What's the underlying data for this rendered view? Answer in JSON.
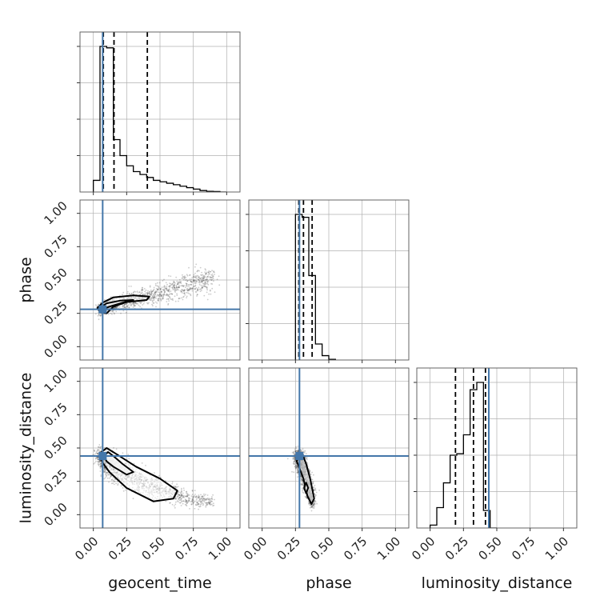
{
  "chart_data": {
    "type": "corner",
    "parameters": [
      "geocent_time",
      "phase",
      "luminosity_distance"
    ],
    "xlabels": [
      "geocent_time",
      "phase",
      "luminosity_distance"
    ],
    "ylabels": [
      "",
      "phase",
      "luminosity_distance"
    ],
    "axis_range": [
      -0.1,
      1.1
    ],
    "tick_values": [
      0.0,
      0.25,
      0.5,
      0.75,
      1.0
    ],
    "tick_labels": [
      "0.00",
      "0.25",
      "0.50",
      "0.75",
      "1.00"
    ],
    "grid": true,
    "truths": {
      "geocent_time": 0.07,
      "phase": 0.28,
      "luminosity_distance": 0.44
    },
    "quantiles": {
      "geocent_time": [
        0.075,
        0.155,
        0.405
      ],
      "phase": [
        0.275,
        0.31,
        0.375
      ],
      "luminosity_distance": [
        0.19,
        0.325,
        0.415
      ]
    },
    "histograms": {
      "geocent_time": {
        "bin_edges": [
          0.0,
          0.05,
          0.1,
          0.15,
          0.2,
          0.25,
          0.3,
          0.35,
          0.4,
          0.45,
          0.5,
          0.55,
          0.6,
          0.65,
          0.7,
          0.75,
          0.8,
          0.85,
          0.9,
          0.95,
          1.0
        ],
        "counts": [
          0.08,
          1.0,
          0.99,
          0.36,
          0.25,
          0.18,
          0.14,
          0.12,
          0.1,
          0.08,
          0.07,
          0.06,
          0.05,
          0.04,
          0.03,
          0.02,
          0.01,
          0.005,
          0.003,
          0.0
        ]
      },
      "phase": {
        "bin_edges": [
          0.25,
          0.3,
          0.35,
          0.4,
          0.45,
          0.5,
          0.55
        ],
        "counts": [
          1.0,
          0.98,
          0.58,
          0.11,
          0.03,
          0.005
        ]
      },
      "luminosity_distance": {
        "bin_edges": [
          0.0,
          0.05,
          0.1,
          0.15,
          0.2,
          0.25,
          0.3,
          0.35,
          0.4,
          0.45,
          0.5
        ],
        "counts": [
          0.02,
          0.14,
          0.31,
          0.5,
          0.51,
          0.64,
          0.95,
          1.0,
          0.12,
          0.0
        ]
      }
    },
    "scatter_regions": [
      {
        "x": "geocent_time",
        "y": "phase",
        "spine": [
          [
            0.05,
            0.28
          ],
          [
            0.15,
            0.31
          ],
          [
            0.3,
            0.35
          ],
          [
            0.45,
            0.39
          ],
          [
            0.6,
            0.43
          ],
          [
            0.75,
            0.47
          ],
          [
            0.9,
            0.52
          ]
        ],
        "spread": [
          0.02,
          0.025,
          0.03,
          0.035,
          0.04,
          0.045,
          0.05
        ]
      },
      {
        "x": "geocent_time",
        "y": "luminosity_distance",
        "spine": [
          [
            0.05,
            0.44
          ],
          [
            0.12,
            0.36
          ],
          [
            0.25,
            0.3
          ],
          [
            0.4,
            0.23
          ],
          [
            0.55,
            0.17
          ],
          [
            0.7,
            0.12
          ],
          [
            0.9,
            0.1
          ]
        ],
        "spread": [
          0.03,
          0.05,
          0.05,
          0.045,
          0.04,
          0.03,
          0.02
        ]
      },
      {
        "x": "phase",
        "y": "luminosity_distance",
        "spine": [
          [
            0.27,
            0.44
          ],
          [
            0.3,
            0.36
          ],
          [
            0.33,
            0.26
          ],
          [
            0.36,
            0.16
          ],
          [
            0.38,
            0.08
          ]
        ],
        "spread": [
          0.03,
          0.035,
          0.035,
          0.03,
          0.02
        ]
      }
    ],
    "contours": [
      {
        "x": "geocent_time",
        "y": "phase",
        "outer": [
          [
            0.03,
            0.29
          ],
          [
            0.07,
            0.33
          ],
          [
            0.15,
            0.37
          ],
          [
            0.3,
            0.385
          ],
          [
            0.42,
            0.375
          ],
          [
            0.4,
            0.35
          ],
          [
            0.25,
            0.335
          ],
          [
            0.15,
            0.3
          ],
          [
            0.1,
            0.25
          ],
          [
            0.05,
            0.26
          ],
          [
            0.03,
            0.29
          ]
        ],
        "inner": [
          [
            0.06,
            0.3
          ],
          [
            0.1,
            0.325
          ],
          [
            0.2,
            0.345
          ],
          [
            0.3,
            0.35
          ],
          [
            0.22,
            0.33
          ],
          [
            0.12,
            0.3
          ],
          [
            0.08,
            0.285
          ],
          [
            0.06,
            0.3
          ]
        ]
      },
      {
        "x": "geocent_time",
        "y": "luminosity_distance",
        "outer": [
          [
            0.05,
            0.46
          ],
          [
            0.1,
            0.5
          ],
          [
            0.18,
            0.45
          ],
          [
            0.32,
            0.36
          ],
          [
            0.5,
            0.27
          ],
          [
            0.63,
            0.18
          ],
          [
            0.6,
            0.12
          ],
          [
            0.45,
            0.1
          ],
          [
            0.25,
            0.2
          ],
          [
            0.12,
            0.32
          ],
          [
            0.07,
            0.39
          ],
          [
            0.05,
            0.46
          ]
        ],
        "inner": [
          [
            0.08,
            0.44
          ],
          [
            0.11,
            0.47
          ],
          [
            0.15,
            0.44
          ],
          [
            0.22,
            0.38
          ],
          [
            0.3,
            0.32
          ],
          [
            0.25,
            0.3
          ],
          [
            0.15,
            0.36
          ],
          [
            0.1,
            0.4
          ],
          [
            0.08,
            0.44
          ]
        ]
      },
      {
        "x": "phase",
        "y": "luminosity_distance",
        "outer": [
          [
            0.27,
            0.44
          ],
          [
            0.3,
            0.46
          ],
          [
            0.33,
            0.38
          ],
          [
            0.36,
            0.27
          ],
          [
            0.39,
            0.12
          ],
          [
            0.37,
            0.08
          ],
          [
            0.34,
            0.14
          ],
          [
            0.31,
            0.27
          ],
          [
            0.28,
            0.35
          ],
          [
            0.26,
            0.4
          ],
          [
            0.27,
            0.44
          ]
        ],
        "inner": [
          [
            0.315,
            0.2
          ],
          [
            0.33,
            0.24
          ],
          [
            0.345,
            0.2
          ],
          [
            0.33,
            0.16
          ],
          [
            0.315,
            0.2
          ]
        ]
      }
    ],
    "colors": {
      "truth": "#4477aa",
      "hist": "#000000",
      "contour": "#000000",
      "scatter": "#333333",
      "grid": "#b0b0b0"
    }
  }
}
